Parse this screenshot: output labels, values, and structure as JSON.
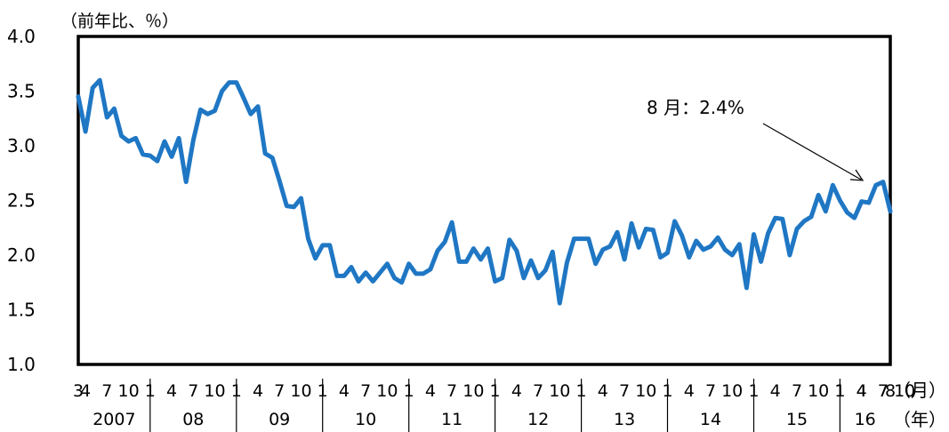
{
  "chart_data": {
    "type": "line",
    "ylabel": "（前年比、％）",
    "ylim": [
      1.0,
      4.0
    ],
    "yticks": [
      "4.0",
      "3.5",
      "3.0",
      "2.5",
      "2.0",
      "1.5",
      "1.0"
    ],
    "grid": false,
    "month_unit_label": "（月）",
    "year_unit_label": "（年）",
    "month_tick_labels": [
      "3",
      "4",
      "7",
      "10",
      "1",
      "4",
      "7",
      "10",
      "1",
      "4",
      "7",
      "10",
      "1",
      "4",
      "7",
      "10",
      "1",
      "4",
      "7",
      "10",
      "1",
      "4",
      "7",
      "10",
      "1",
      "4",
      "7",
      "10",
      "1",
      "4",
      "7",
      "10",
      "1",
      "4",
      "7",
      "10",
      "1",
      "4",
      "7",
      "10",
      "1",
      "4",
      "7",
      "8"
    ],
    "year_labels": [
      "2007",
      "08",
      "09",
      "10",
      "11",
      "12",
      "13",
      "14",
      "15",
      "16"
    ],
    "annotation": "8 月：2.4%",
    "series_color": "#1f77c4",
    "series": [
      {
        "name": "",
        "values": [
          3.45,
          3.13,
          3.53,
          3.6,
          3.26,
          3.34,
          3.09,
          3.04,
          3.07,
          2.92,
          2.91,
          2.86,
          3.04,
          2.9,
          3.07,
          2.67,
          3.05,
          3.33,
          3.29,
          3.32,
          3.5,
          3.58,
          3.58,
          3.44,
          3.29,
          3.36,
          2.93,
          2.89,
          2.68,
          2.45,
          2.44,
          2.52,
          2.15,
          1.97,
          2.09,
          2.09,
          1.81,
          1.81,
          1.89,
          1.76,
          1.84,
          1.76,
          1.84,
          1.92,
          1.79,
          1.75,
          1.92,
          1.83,
          1.83,
          1.87,
          2.04,
          2.12,
          2.3,
          1.94,
          1.94,
          2.06,
          1.96,
          2.06,
          1.76,
          1.79,
          2.14,
          2.04,
          1.79,
          1.95,
          1.79,
          1.86,
          2.03,
          1.56,
          1.93,
          2.15,
          2.15,
          2.15,
          1.92,
          2.05,
          2.08,
          2.21,
          1.96,
          2.29,
          2.07,
          2.24,
          2.23,
          1.98,
          2.02,
          2.31,
          2.18,
          1.98,
          2.13,
          2.05,
          2.08,
          2.16,
          2.05,
          2.0,
          2.1,
          1.7,
          2.19,
          1.94,
          2.2,
          2.34,
          2.33,
          2.0,
          2.24,
          2.31,
          2.35,
          2.55,
          2.4,
          2.64,
          2.5,
          2.39,
          2.34,
          2.49,
          2.48,
          2.64,
          2.67,
          2.4
        ]
      }
    ]
  }
}
